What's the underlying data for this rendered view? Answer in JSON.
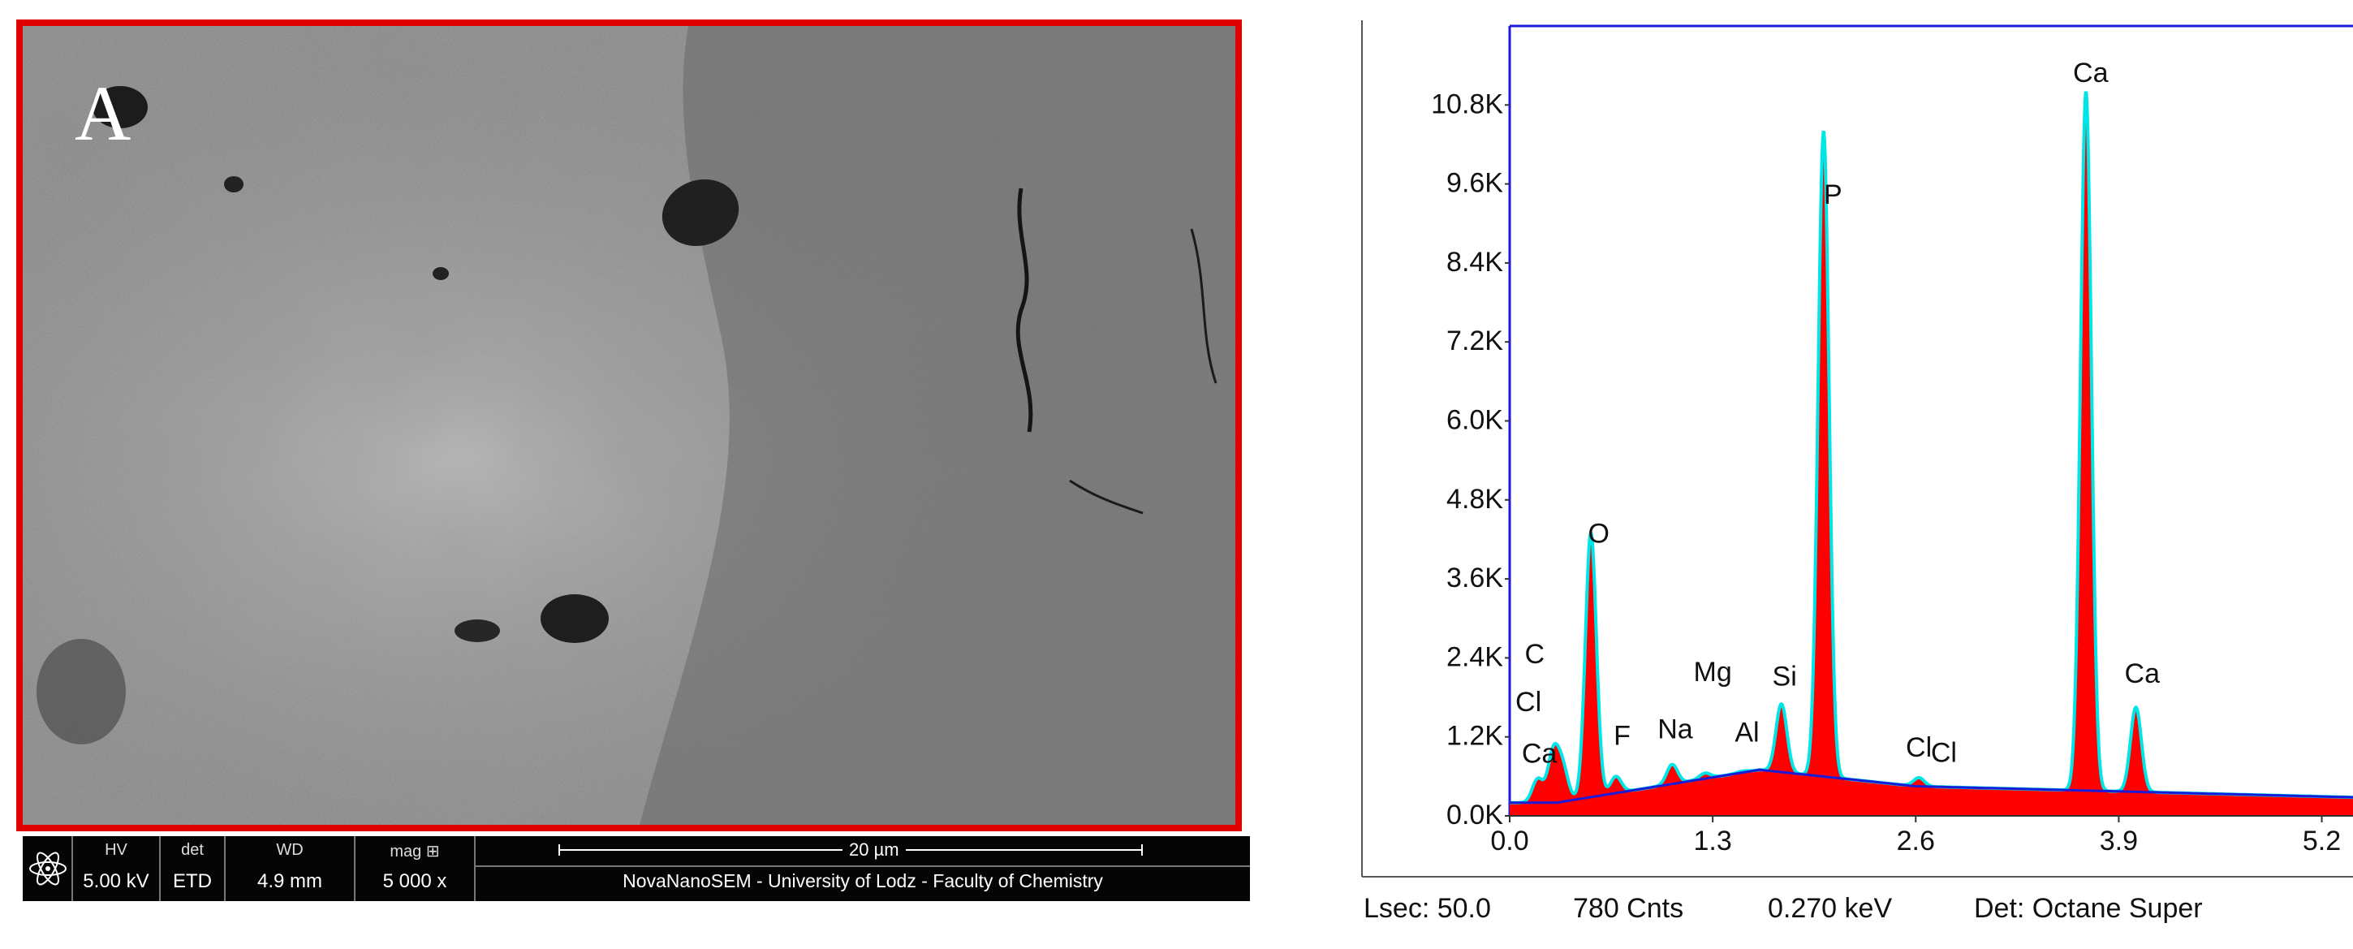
{
  "sem": {
    "panel_letter": "A",
    "info_bar": {
      "hv_label": "HV",
      "hv_value": "5.00 kV",
      "det_label": "det",
      "det_value": "ETD",
      "wd_label": "WD",
      "wd_value": "4.9 mm",
      "mag_label": "mag ⊞",
      "mag_value": "5 000 x",
      "scalebar": "20 µm",
      "instrument": "NovaNanoSEM - University of Lodz - Faculty of Chemistry",
      "logo_icon": "atom-icon"
    }
  },
  "status": {
    "lsec": "Lsec: 50.0",
    "cnts": "780 Cnts",
    "kev": "0.270 keV",
    "det": "Det: Octane Super"
  },
  "colors": {
    "spectrum_fill": "#ff0000",
    "spectrum_outline": "#00e5e5",
    "background_line": "#1a1ad9",
    "frame_red": "#e00000"
  },
  "chart_data": {
    "type": "area",
    "title": "",
    "xlabel": "",
    "ylabel": "",
    "xlim": [
      0.0,
      5.4
    ],
    "ylim": [
      0,
      12000
    ],
    "x_ticks": [
      "0.0",
      "1.3",
      "2.6",
      "3.9",
      "5.2"
    ],
    "y_ticks": [
      "0.0K",
      "1.2K",
      "2.4K",
      "3.6K",
      "4.8K",
      "6.0K",
      "7.2K",
      "8.4K",
      "9.6K",
      "10.8K"
    ],
    "baseline": 280,
    "peaks": [
      {
        "label": "Cl",
        "x": 0.18,
        "y": 560,
        "label_x": 0.12,
        "label_y": 1590
      },
      {
        "label": "C",
        "x": 0.28,
        "y": 950,
        "label_x": 0.16,
        "label_y": 2320
      },
      {
        "label": "Ca",
        "x": 0.34,
        "y": 700,
        "label_x": 0.19,
        "label_y": 810
      },
      {
        "label": "O",
        "x": 0.52,
        "y": 4300,
        "label_x": 0.57,
        "label_y": 4150
      },
      {
        "label": "F",
        "x": 0.68,
        "y": 600,
        "label_x": 0.72,
        "label_y": 1080
      },
      {
        "label": "Na",
        "x": 1.04,
        "y": 780,
        "label_x": 1.06,
        "label_y": 1180
      },
      {
        "label": "Mg",
        "x": 1.25,
        "y": 650,
        "label_x": 1.3,
        "label_y": 2050
      },
      {
        "label": "Al",
        "x": 1.49,
        "y": 680,
        "label_x": 1.52,
        "label_y": 1130
      },
      {
        "label": "Si",
        "x": 1.74,
        "y": 1700,
        "label_x": 1.76,
        "label_y": 1980
      },
      {
        "label": "P",
        "x": 2.01,
        "y": 10400,
        "label_x": 2.07,
        "label_y": 9300
      },
      {
        "label": "Cl",
        "x": 2.62,
        "y": 580,
        "label_x": 2.62,
        "label_y": 900
      },
      {
        "label": "Cl",
        "x": 2.82,
        "y": 420,
        "label_x": 2.78,
        "label_y": 820
      },
      {
        "label": "Ca",
        "x": 3.69,
        "y": 11000,
        "label_x": 3.72,
        "label_y": 11150
      },
      {
        "label": "Ca",
        "x": 4.01,
        "y": 1650,
        "label_x": 4.05,
        "label_y": 2020
      }
    ]
  }
}
